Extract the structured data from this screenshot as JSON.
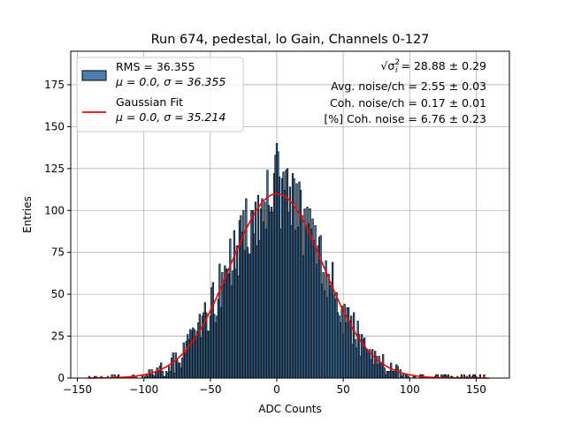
{
  "chart_data": {
    "type": "bar",
    "title": "Run 674, pedestal, lo Gain, Channels 0-127",
    "xlabel": "ADC Counts",
    "ylabel": "Entries",
    "xlim": [
      -155,
      175
    ],
    "ylim": [
      0,
      195
    ],
    "xticks": [
      -150,
      -100,
      -50,
      0,
      50,
      100,
      150
    ],
    "xtick_labels": [
      "−150",
      "−100",
      "−50",
      "0",
      "50",
      "100",
      "150"
    ],
    "yticks": [
      0,
      25,
      50,
      75,
      100,
      125,
      150,
      175
    ],
    "grid": true,
    "legend_position": "top-left",
    "bin_width": 1,
    "series": [
      {
        "kind": "histogram",
        "legend_line1": "RMS = 36.355",
        "legend_line2": "μ = 0.0, σ = 36.355",
        "color": "#4a7fb0",
        "edgecolor": "#000000"
      },
      {
        "kind": "gaussian_fit",
        "legend_line1": "Gaussian Fit",
        "legend_line2": "μ = 0.0, σ = 35.214",
        "mu": 0.0,
        "sigma": 35.214,
        "amplitude": 110,
        "color": "#ff0000"
      }
    ],
    "annotations": [
      {
        "prefix": "√σ",
        "sup": "2",
        "sub": "i",
        "text": " = 28.88 ± 0.29"
      },
      {
        "text": "Avg. noise/ch = 2.55 ± 0.03"
      },
      {
        "text": "Coh. noise/ch = 0.17 ± 0.01"
      },
      {
        "text": "[%] Coh. noise = 6.76 ± 0.23"
      }
    ]
  }
}
